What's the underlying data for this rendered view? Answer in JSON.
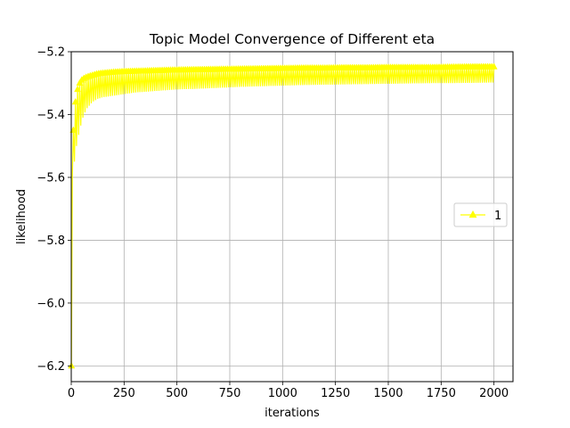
{
  "chart_data": {
    "type": "line",
    "title": "Topic Model Convergence of Different eta",
    "xlabel": "iterations",
    "ylabel": "likelihood",
    "xlim": [
      0,
      2090
    ],
    "ylim": [
      -6.25,
      -5.2
    ],
    "xticks": [
      0,
      250,
      500,
      750,
      1000,
      1250,
      1500,
      1750,
      2000
    ],
    "yticks": [
      -6.2,
      -6.0,
      -5.8,
      -5.6,
      -5.4,
      -5.2
    ],
    "xtick_labels": [
      "0",
      "250",
      "500",
      "750",
      "1000",
      "1250",
      "1500",
      "1750",
      "2000"
    ],
    "ytick_labels": [
      "−6.2",
      "−6.0",
      "−5.8",
      "−5.6",
      "−5.4",
      "−5.2"
    ],
    "grid": true,
    "legend_position": "center-right",
    "series": [
      {
        "name": "1",
        "color": "#ffff00",
        "marker": "triangle-up",
        "x": [
          1,
          5,
          10,
          15,
          20,
          25,
          30,
          40,
          50,
          60,
          75,
          100,
          125,
          150,
          200,
          250,
          300,
          400,
          500,
          600,
          700,
          800,
          900,
          1000,
          1100,
          1200,
          1300,
          1400,
          1500,
          1600,
          1700,
          1800,
          1900,
          2000
        ],
        "upper": [
          -6.2,
          -5.58,
          -5.45,
          -5.4,
          -5.36,
          -5.34,
          -5.32,
          -5.3,
          -5.29,
          -5.285,
          -5.28,
          -5.275,
          -5.27,
          -5.268,
          -5.265,
          -5.263,
          -5.262,
          -5.26,
          -5.258,
          -5.257,
          -5.256,
          -5.255,
          -5.254,
          -5.253,
          -5.252,
          -5.252,
          -5.251,
          -5.251,
          -5.25,
          -5.25,
          -5.25,
          -5.249,
          -5.248,
          -5.248
        ],
        "lower": [
          -6.2,
          -5.6,
          -5.57,
          -5.55,
          -5.53,
          -5.5,
          -5.48,
          -5.45,
          -5.42,
          -5.4,
          -5.38,
          -5.36,
          -5.35,
          -5.345,
          -5.34,
          -5.335,
          -5.33,
          -5.325,
          -5.32,
          -5.318,
          -5.315,
          -5.312,
          -5.31,
          -5.308,
          -5.306,
          -5.305,
          -5.304,
          -5.303,
          -5.302,
          -5.301,
          -5.3,
          -5.3,
          -5.299,
          -5.298
        ]
      }
    ]
  }
}
